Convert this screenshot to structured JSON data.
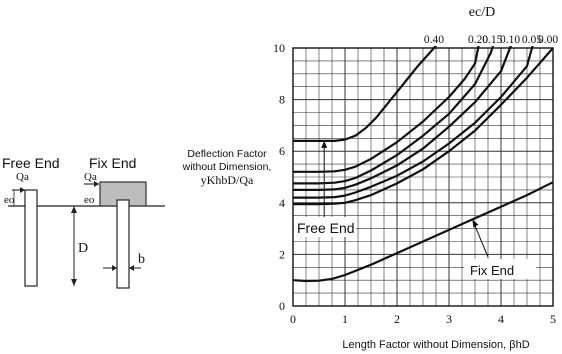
{
  "diagram": {
    "free_end_label": "Free End",
    "fix_end_label": "Fix End",
    "load_label": "Qa",
    "eccentricity_label": "eo",
    "depth_label": "D",
    "width_label": "b"
  },
  "chart_data": {
    "type": "line",
    "title": "ec/D",
    "ylabel_line1": "Deflection Factor",
    "ylabel_line2": "without Dimension,",
    "ylabel_line3": "yKhbD/Qa",
    "xlabel": "Length Factor without Dimension, βhD",
    "xlim": [
      0,
      5
    ],
    "ylim": [
      0,
      10
    ],
    "x_ticks": [
      "0",
      "1",
      "2",
      "3",
      "4",
      "5"
    ],
    "y_ticks": [
      "0",
      "2",
      "4",
      "6",
      "8",
      "10"
    ],
    "grid": true,
    "top_ticks": [
      "0.40",
      "0.20",
      "0.15",
      "0.10",
      "0.05",
      "0.00"
    ],
    "annotations": {
      "free_end": "Free End",
      "fix_end": "Fix End"
    },
    "series": [
      {
        "group": "free_end",
        "ratio": "0.40",
        "x": [
          0,
          0.2,
          0.5,
          0.8,
          1.0,
          1.2,
          1.4,
          1.6,
          1.8,
          2.0,
          2.2,
          2.4,
          2.6,
          2.8,
          2.9
        ],
        "y": [
          6.4,
          6.4,
          6.4,
          6.4,
          6.45,
          6.6,
          6.9,
          7.3,
          7.8,
          8.3,
          8.8,
          9.3,
          9.75,
          10.2,
          10.4
        ]
      },
      {
        "group": "free_end",
        "ratio": "0.20",
        "x": [
          0,
          0.5,
          0.8,
          1.0,
          1.2,
          1.5,
          2.0,
          2.5,
          3.0,
          3.3,
          3.5,
          3.6
        ],
        "y": [
          5.2,
          5.2,
          5.22,
          5.28,
          5.4,
          5.7,
          6.35,
          7.15,
          8.1,
          8.8,
          9.4,
          10.4
        ]
      },
      {
        "group": "free_end",
        "ratio": "0.15",
        "x": [
          0,
          0.5,
          0.8,
          1.0,
          1.2,
          1.5,
          2.0,
          2.5,
          3.0,
          3.5,
          3.8,
          3.9
        ],
        "y": [
          4.75,
          4.75,
          4.78,
          4.84,
          4.96,
          5.25,
          5.85,
          6.6,
          7.45,
          8.6,
          9.8,
          10.4
        ]
      },
      {
        "group": "free_end",
        "ratio": "0.10",
        "x": [
          0,
          0.5,
          0.8,
          1.0,
          1.2,
          1.5,
          2.0,
          2.5,
          3.0,
          3.5,
          4.0,
          4.25
        ],
        "y": [
          4.5,
          4.5,
          4.52,
          4.58,
          4.7,
          4.95,
          5.45,
          6.1,
          6.95,
          7.9,
          9.1,
          10.4
        ]
      },
      {
        "group": "free_end",
        "ratio": "0.05",
        "x": [
          0,
          0.5,
          0.8,
          1.0,
          1.2,
          1.5,
          2.0,
          2.5,
          3.0,
          3.5,
          4.0,
          4.5,
          4.65
        ],
        "y": [
          4.2,
          4.2,
          4.22,
          4.28,
          4.4,
          4.62,
          5.05,
          5.6,
          6.3,
          7.1,
          8.1,
          9.3,
          10.4
        ]
      },
      {
        "group": "free_end",
        "ratio": "0.00",
        "x": [
          0,
          0.5,
          0.8,
          1.0,
          1.2,
          1.5,
          2.0,
          2.5,
          3.0,
          3.5,
          4.0,
          4.5,
          5.0
        ],
        "y": [
          3.95,
          3.95,
          3.97,
          4.0,
          4.1,
          4.3,
          4.75,
          5.3,
          6.0,
          6.8,
          7.8,
          8.85,
          10.0
        ]
      },
      {
        "group": "fix_end",
        "ratio": "",
        "x": [
          0,
          0.25,
          0.5,
          0.75,
          1.0,
          1.25,
          1.5,
          2.0,
          2.5,
          3.0,
          3.5,
          4.0,
          4.5,
          5.0
        ],
        "y": [
          1.0,
          0.97,
          0.98,
          1.05,
          1.2,
          1.4,
          1.6,
          2.05,
          2.5,
          2.95,
          3.4,
          3.85,
          4.3,
          4.8
        ]
      }
    ]
  }
}
